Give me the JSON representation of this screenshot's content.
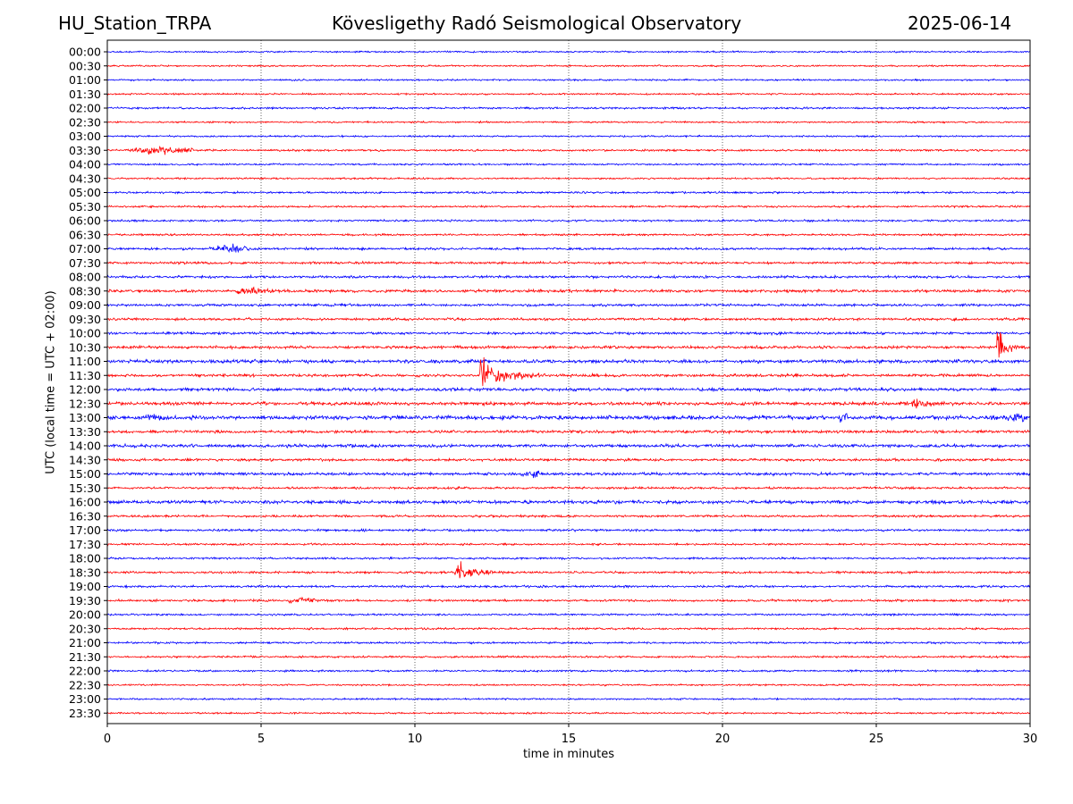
{
  "header": {
    "station": "HU_Station_TRPA",
    "observatory": "Kövesligethy Radó Seismological Observatory",
    "date": "2025-06-14"
  },
  "chart_data": {
    "type": "line",
    "xlabel": "time in minutes",
    "ylabel": "UTC (local time = UTC + 02:00)",
    "xlim": [
      0,
      30
    ],
    "x_ticks": [
      0,
      5,
      10,
      15,
      20,
      25,
      30
    ],
    "vertical_grid": "dotted",
    "row_labels": [
      "00:00",
      "00:30",
      "01:00",
      "01:30",
      "02:00",
      "02:30",
      "03:00",
      "03:30",
      "04:00",
      "04:30",
      "05:00",
      "05:30",
      "06:00",
      "06:30",
      "07:00",
      "07:30",
      "08:00",
      "08:30",
      "09:00",
      "09:30",
      "10:00",
      "10:30",
      "11:00",
      "11:30",
      "12:00",
      "12:30",
      "13:00",
      "13:30",
      "14:00",
      "14:30",
      "15:00",
      "15:30",
      "16:00",
      "16:30",
      "17:00",
      "17:30",
      "18:00",
      "18:30",
      "19:00",
      "19:30",
      "20:00",
      "20:30",
      "21:00",
      "21:30",
      "22:00",
      "22:30",
      "23:00",
      "23:30"
    ],
    "colors": [
      "#0000ff",
      "#ff0000"
    ],
    "noise_level": [
      0.6,
      0.6,
      0.6,
      0.6,
      0.7,
      0.6,
      0.6,
      0.7,
      0.6,
      0.6,
      0.7,
      0.7,
      0.7,
      0.7,
      0.8,
      0.8,
      0.9,
      1.0,
      0.9,
      0.9,
      0.9,
      1.0,
      1.2,
      1.0,
      1.1,
      1.2,
      1.4,
      1.0,
      1.1,
      0.9,
      1.0,
      0.8,
      1.2,
      0.8,
      0.8,
      0.7,
      0.7,
      0.8,
      0.8,
      0.8,
      0.7,
      0.7,
      0.7,
      0.7,
      0.7,
      0.6,
      0.6,
      0.6
    ],
    "events": [
      {
        "row": 7,
        "start": 0.5,
        "duration": 2.5,
        "amplitude": 2.2
      },
      {
        "row": 14,
        "start": 3.2,
        "duration": 1.5,
        "amplitude": 2.6
      },
      {
        "row": 17,
        "start": 4.0,
        "duration": 1.5,
        "amplitude": 2.0
      },
      {
        "row": 21,
        "start": 28.9,
        "duration": 1.1,
        "amplitude": 14
      },
      {
        "row": 23,
        "start": 12.1,
        "duration": 2.5,
        "amplitude": 16
      },
      {
        "row": 25,
        "start": 25.9,
        "duration": 1.0,
        "amplitude": 2.5
      },
      {
        "row": 26,
        "start": 23.8,
        "duration": 0.3,
        "amplitude": 4.5
      },
      {
        "row": 26,
        "start": 1.2,
        "duration": 0.6,
        "amplitude": 2.5
      },
      {
        "row": 26,
        "start": 29.2,
        "duration": 0.8,
        "amplitude": 2.5
      },
      {
        "row": 30,
        "start": 13.4,
        "duration": 0.8,
        "amplitude": 2.0
      },
      {
        "row": 37,
        "start": 11.3,
        "duration": 2.0,
        "amplitude": 10
      },
      {
        "row": 39,
        "start": 5.8,
        "duration": 1.0,
        "amplitude": 1.8
      }
    ]
  }
}
